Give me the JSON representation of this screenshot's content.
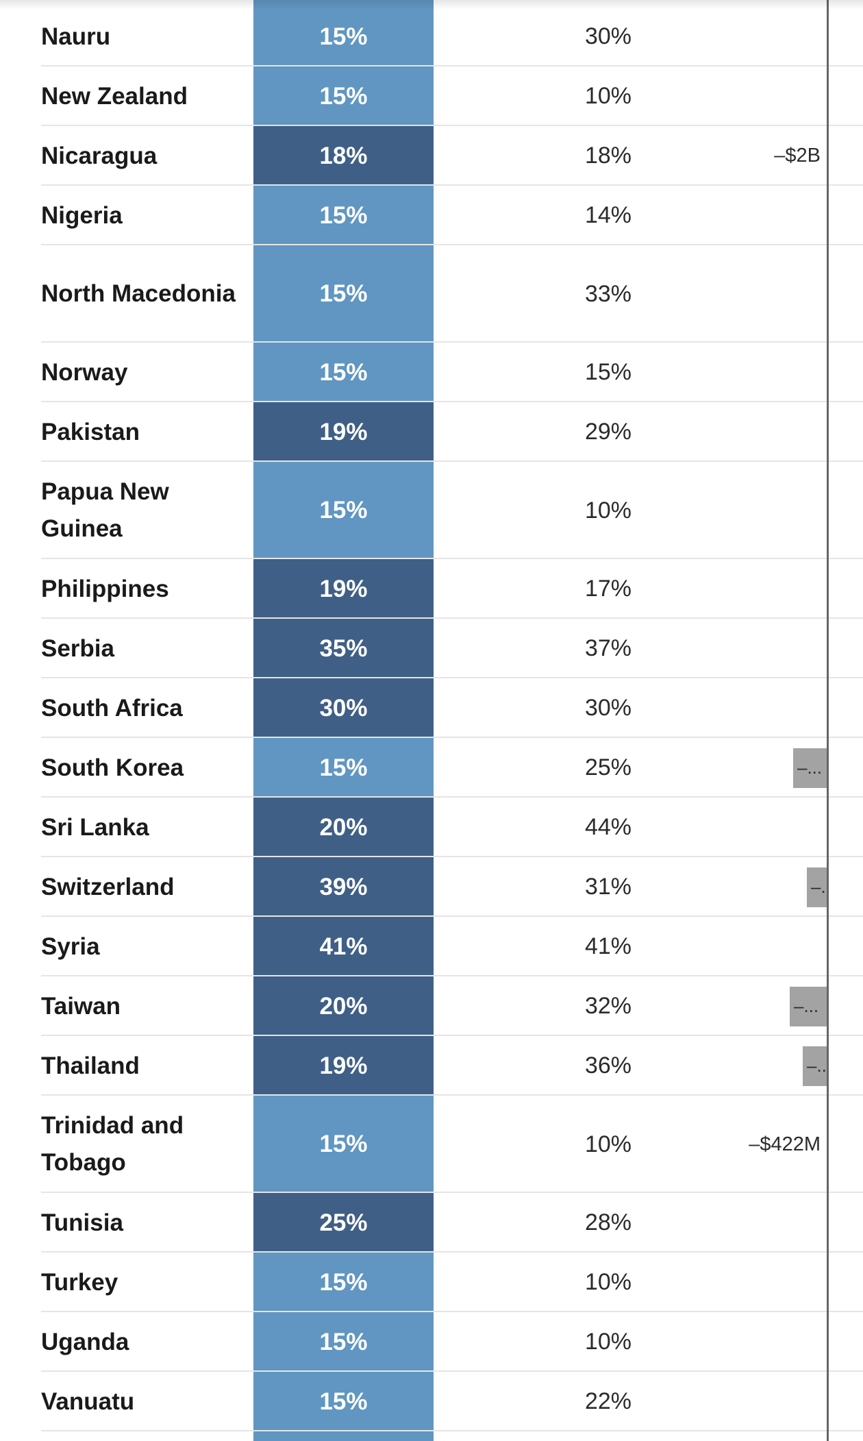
{
  "rows": [
    {
      "country": "Nauru",
      "rate": "15%",
      "tier": "low",
      "prev_rate": "30%",
      "deficit_label": "",
      "deficit_bar": false,
      "deficit_bar_text": ""
    },
    {
      "country": "New Zealand",
      "rate": "15%",
      "tier": "low",
      "prev_rate": "10%",
      "deficit_label": "",
      "deficit_bar": false,
      "deficit_bar_text": ""
    },
    {
      "country": "Nicaragua",
      "rate": "18%",
      "tier": "high",
      "prev_rate": "18%",
      "deficit_label": "–$2B",
      "deficit_bar": false,
      "deficit_bar_text": ""
    },
    {
      "country": "Nigeria",
      "rate": "15%",
      "tier": "low",
      "prev_rate": "14%",
      "deficit_label": "",
      "deficit_bar": false,
      "deficit_bar_text": ""
    },
    {
      "country": "North Macedonia",
      "rate": "15%",
      "tier": "low",
      "prev_rate": "33%",
      "deficit_label": "",
      "deficit_bar": false,
      "deficit_bar_text": ""
    },
    {
      "country": "Norway",
      "rate": "15%",
      "tier": "low",
      "prev_rate": "15%",
      "deficit_label": "",
      "deficit_bar": false,
      "deficit_bar_text": ""
    },
    {
      "country": "Pakistan",
      "rate": "19%",
      "tier": "high",
      "prev_rate": "29%",
      "deficit_label": "",
      "deficit_bar": false,
      "deficit_bar_text": ""
    },
    {
      "country": "Papua New Guinea",
      "rate": "15%",
      "tier": "low",
      "prev_rate": "10%",
      "deficit_label": "",
      "deficit_bar": false,
      "deficit_bar_text": ""
    },
    {
      "country": "Philippines",
      "rate": "19%",
      "tier": "high",
      "prev_rate": "17%",
      "deficit_label": "",
      "deficit_bar": false,
      "deficit_bar_text": ""
    },
    {
      "country": "Serbia",
      "rate": "35%",
      "tier": "high",
      "prev_rate": "37%",
      "deficit_label": "",
      "deficit_bar": false,
      "deficit_bar_text": ""
    },
    {
      "country": "South Africa",
      "rate": "30%",
      "tier": "high",
      "prev_rate": "30%",
      "deficit_label": "",
      "deficit_bar": false,
      "deficit_bar_text": ""
    },
    {
      "country": "South Korea",
      "rate": "15%",
      "tier": "low",
      "prev_rate": "25%",
      "deficit_label": "",
      "deficit_bar": true,
      "deficit_bar_text": "–..."
    },
    {
      "country": "Sri Lanka",
      "rate": "20%",
      "tier": "high",
      "prev_rate": "44%",
      "deficit_label": "",
      "deficit_bar": false,
      "deficit_bar_text": ""
    },
    {
      "country": "Switzerland",
      "rate": "39%",
      "tier": "high",
      "prev_rate": "31%",
      "deficit_label": "",
      "deficit_bar": true,
      "deficit_bar_text": "–..."
    },
    {
      "country": "Syria",
      "rate": "41%",
      "tier": "high",
      "prev_rate": "41%",
      "deficit_label": "",
      "deficit_bar": false,
      "deficit_bar_text": ""
    },
    {
      "country": "Taiwan",
      "rate": "20%",
      "tier": "high",
      "prev_rate": "32%",
      "deficit_label": "",
      "deficit_bar": true,
      "deficit_bar_text": "–..."
    },
    {
      "country": "Thailand",
      "rate": "19%",
      "tier": "high",
      "prev_rate": "36%",
      "deficit_label": "",
      "deficit_bar": true,
      "deficit_bar_text": "–..."
    },
    {
      "country": "Trinidad and Tobago",
      "rate": "15%",
      "tier": "low",
      "prev_rate": "10%",
      "deficit_label": "–$422M",
      "deficit_bar": false,
      "deficit_bar_text": ""
    },
    {
      "country": "Tunisia",
      "rate": "25%",
      "tier": "high",
      "prev_rate": "28%",
      "deficit_label": "",
      "deficit_bar": false,
      "deficit_bar_text": ""
    },
    {
      "country": "Turkey",
      "rate": "15%",
      "tier": "low",
      "prev_rate": "10%",
      "deficit_label": "",
      "deficit_bar": false,
      "deficit_bar_text": ""
    },
    {
      "country": "Uganda",
      "rate": "15%",
      "tier": "low",
      "prev_rate": "10%",
      "deficit_label": "",
      "deficit_bar": false,
      "deficit_bar_text": ""
    },
    {
      "country": "Vanuatu",
      "rate": "15%",
      "tier": "low",
      "prev_rate": "22%",
      "deficit_label": "",
      "deficit_bar": false,
      "deficit_bar_text": ""
    }
  ],
  "colors": {
    "rate_low": "#6096c1",
    "rate_high": "#3f5f86",
    "deficit_bar": "#a3a3a3",
    "axis": "#666666"
  }
}
